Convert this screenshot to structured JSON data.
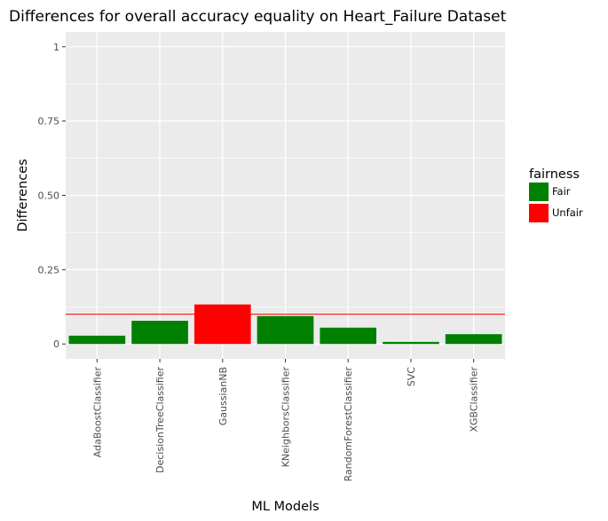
{
  "chart_data": {
    "type": "bar",
    "title": "Differences for overall accuracy equality on Heart_Failure Dataset",
    "xlabel": "ML Models",
    "ylabel": "Differences",
    "categories": [
      "AdaBoostClassifier",
      "DecisionTreeClassifier",
      "GaussianNB",
      "KNeighborsClassifier",
      "RandomForestClassifier",
      "SVC",
      "XGBClassifier"
    ],
    "values": [
      0.028,
      0.078,
      0.133,
      0.094,
      0.055,
      0.007,
      0.033
    ],
    "fairness": [
      "Fair",
      "Fair",
      "Unfair",
      "Fair",
      "Fair",
      "Fair",
      "Fair"
    ],
    "threshold": 0.1,
    "ylim": [
      -0.05,
      1.05
    ],
    "yticks": [
      0,
      0.25,
      0.5,
      0.75,
      1
    ],
    "ytick_labels": [
      "0",
      "0.25",
      "0.50",
      "0.75",
      "1"
    ],
    "grid": true,
    "legend": {
      "title": "fairness",
      "position": "right",
      "entries": [
        {
          "label": "Fair",
          "color": "#008000"
        },
        {
          "label": "Unfair",
          "color": "#ff0000"
        }
      ]
    },
    "colors": {
      "Fair": "#008000",
      "Unfair": "#ff0000",
      "threshold_line": "#ff0000",
      "panel_background": "#ebebeb",
      "grid": "#ffffff"
    }
  }
}
